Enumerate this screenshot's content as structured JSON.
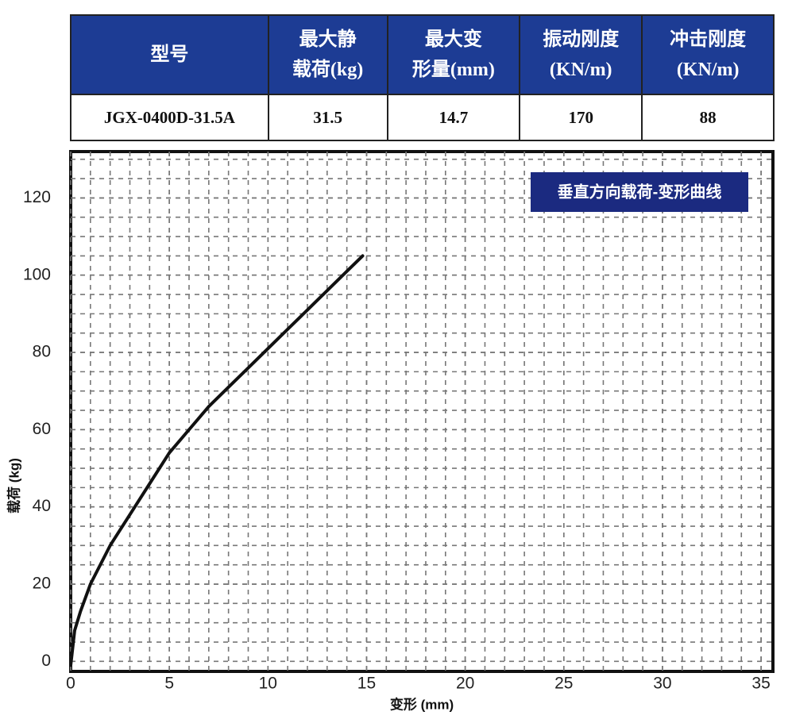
{
  "table": {
    "header": [
      [
        "型号"
      ],
      [
        "最大静",
        "载荷(kg)"
      ],
      [
        "最大变",
        "形量(mm)"
      ],
      [
        "振动刚度",
        "(KN/m)"
      ],
      [
        "冲击刚度",
        "(KN/m)"
      ]
    ],
    "rows": [
      [
        "JGX-0400D-31.5A",
        "31.5",
        "14.7",
        "170",
        "88"
      ]
    ]
  },
  "chart_data": {
    "type": "line",
    "title": "垂直方向载荷-变形曲线",
    "x_label": "变形 (mm)",
    "y_label": "载荷 (kg)",
    "x": [
      0,
      0.2,
      0.5,
      1,
      2,
      3,
      4,
      5,
      6,
      7,
      8,
      9,
      10,
      11,
      12,
      13,
      14,
      14.8
    ],
    "series": [
      {
        "color": "#111111",
        "values": [
          -1,
          8,
          13,
          20,
          30,
          38,
          46,
          54,
          60,
          66,
          71,
          76,
          81,
          86,
          91,
          96,
          101,
          105
        ]
      }
    ],
    "xlim": [
      0,
      35.6
    ],
    "ylim": [
      -2.6,
      132
    ],
    "xticks": [
      0,
      5,
      10,
      15,
      20,
      25,
      30,
      35
    ],
    "yticks": [
      0,
      20,
      40,
      60,
      80,
      100,
      120
    ],
    "grid": true
  }
}
